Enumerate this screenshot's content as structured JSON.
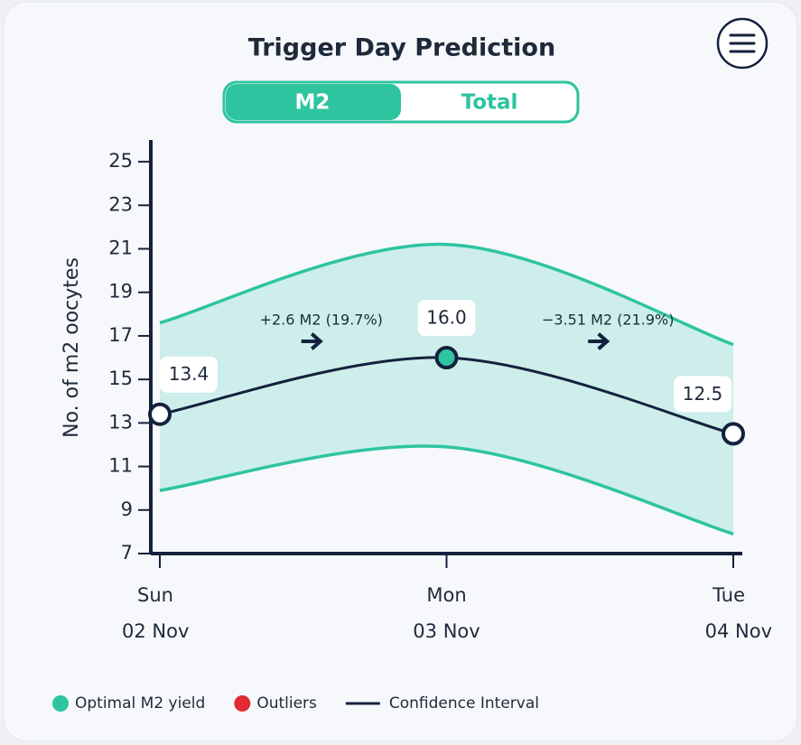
{
  "chart_data": {
    "type": "line",
    "title": "Trigger Day Prediction",
    "toggle": [
      "M2",
      "Total"
    ],
    "toggle_active": 0,
    "y_label": "No. of m2 oocytes",
    "categories": [
      "Sun",
      "Mon",
      "Tue"
    ],
    "dates": [
      "02 Nov",
      "03 Nov",
      "04 Nov"
    ],
    "values": [
      13.4,
      16.0,
      12.5
    ],
    "value_labels": [
      "13.4",
      "16.0",
      "12.5"
    ],
    "point_colors": [
      "#ffffff",
      "#2ec4a0",
      "#ffffff"
    ],
    "color": "#14213d",
    "ci_upper": [
      17.6,
      21.2,
      16.6
    ],
    "ci_lower": [
      9.9,
      11.9,
      7.9
    ],
    "ci_color": "#2ec4a0",
    "band_color": "#cdeeea",
    "annotations": [
      "+2.6 M2 (19.7%)",
      "−3.51 M2 (21.9%)"
    ],
    "ylim": [
      7,
      26
    ],
    "yticks": [
      7,
      9,
      11,
      13,
      15,
      17,
      19,
      21,
      23,
      25
    ],
    "legend": [
      {
        "name": "Optimal M2 yield",
        "color": "#2ec4a0",
        "kind": "dot"
      },
      {
        "name": "Outliers",
        "color": "#e02b35",
        "kind": "dot"
      },
      {
        "name": "Confidence Interval",
        "color": "#14213d",
        "kind": "line"
      }
    ]
  }
}
